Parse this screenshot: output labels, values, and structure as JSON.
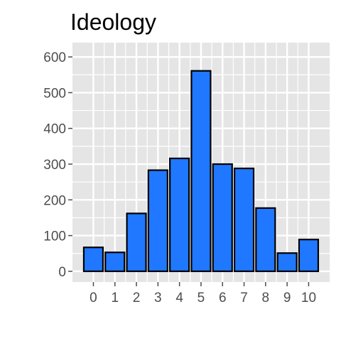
{
  "chart_data": {
    "type": "bar",
    "title": "Ideology",
    "xlabel": "",
    "ylabel": "",
    "categories": [
      "0",
      "1",
      "2",
      "3",
      "4",
      "5",
      "6",
      "7",
      "8",
      "9",
      "10"
    ],
    "values": [
      67,
      53,
      162,
      283,
      316,
      561,
      300,
      288,
      177,
      51,
      89
    ],
    "ylim": [
      -30,
      640
    ],
    "yticks": [
      0,
      100,
      200,
      300,
      400,
      500,
      600
    ],
    "yticks_labels": [
      "0",
      "100",
      "200",
      "300",
      "400",
      "500",
      "600"
    ],
    "grid": true,
    "legend": "none",
    "colors": {
      "bar_fill": "#1f78ff",
      "bar_outline": "#000000",
      "panel_background": "#e5e5e5",
      "grid_line": "#ffffff",
      "tick_mark": "#4d4d4d"
    }
  }
}
